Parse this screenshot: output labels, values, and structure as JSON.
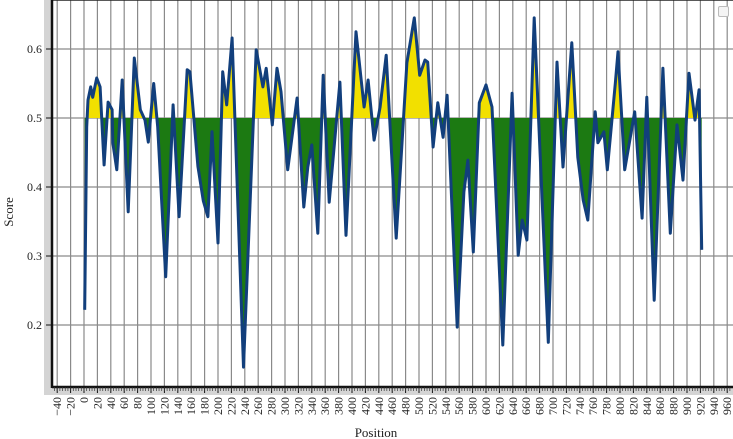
{
  "chart_data": {
    "type": "area",
    "title": "",
    "xlabel": "Position",
    "ylabel": "Score",
    "xlim": [
      -45,
      965
    ],
    "ylim": [
      0.111,
      0.67
    ],
    "threshold": 0.5,
    "grid": true,
    "x_ticks": [
      -40,
      -20,
      0,
      20,
      40,
      60,
      80,
      100,
      120,
      140,
      160,
      180,
      200,
      220,
      240,
      260,
      280,
      300,
      320,
      340,
      360,
      380,
      400,
      420,
      440,
      460,
      480,
      500,
      520,
      540,
      560,
      580,
      600,
      620,
      640,
      660,
      680,
      700,
      720,
      740,
      760,
      780,
      800,
      820,
      840,
      860,
      880,
      900,
      920,
      940,
      960
    ],
    "y_ticks": [
      0.2,
      0.3,
      0.4,
      0.5,
      0.6
    ],
    "colors": {
      "line": "#123f7c",
      "above": "#f2e000",
      "below": "#1c7a12",
      "grid": "#8a8a8a"
    },
    "series": [
      {
        "x": [
          1,
          4,
          6,
          10,
          13,
          19,
          24,
          30,
          36,
          42,
          43,
          49,
          57,
          66,
          75,
          84,
          91,
          96,
          104,
          110,
          122,
          133,
          142,
          154,
          158,
          170,
          178,
          185,
          191,
          200,
          207,
          213,
          221,
          238,
          257,
          267,
          272,
          281,
          288,
          294,
          304,
          318,
          328,
          334,
          340,
          349,
          357,
          366,
          382,
          391,
          406,
          418,
          424,
          433,
          442,
          451,
          466,
          482,
          493,
          501,
          509,
          513,
          521,
          528,
          536,
          542,
          557,
          567,
          573,
          581,
          590,
          600,
          609,
          625,
          639,
          648,
          654,
          661,
          672,
          693,
          706,
          715,
          728,
          737,
          745,
          752,
          763,
          767,
          776,
          781,
          793,
          797,
          807,
          822,
          833,
          840,
          851,
          864,
          875,
          885,
          894,
          903,
          912,
          918,
          922
        ],
        "y": [
          0.222,
          0.487,
          0.526,
          0.545,
          0.53,
          0.558,
          0.545,
          0.432,
          0.523,
          0.512,
          0.464,
          0.425,
          0.555,
          0.364,
          0.587,
          0.512,
          0.497,
          0.465,
          0.55,
          0.487,
          0.27,
          0.519,
          0.357,
          0.57,
          0.567,
          0.43,
          0.38,
          0.357,
          0.48,
          0.319,
          0.567,
          0.519,
          0.616,
          0.139,
          0.599,
          0.545,
          0.572,
          0.49,
          0.572,
          0.538,
          0.425,
          0.529,
          0.371,
          0.429,
          0.461,
          0.333,
          0.562,
          0.378,
          0.552,
          0.33,
          0.625,
          0.516,
          0.555,
          0.468,
          0.516,
          0.591,
          0.326,
          0.58,
          0.645,
          0.562,
          0.584,
          0.581,
          0.458,
          0.522,
          0.472,
          0.533,
          0.197,
          0.393,
          0.439,
          0.306,
          0.522,
          0.548,
          0.516,
          0.171,
          0.536,
          0.301,
          0.352,
          0.323,
          0.645,
          0.175,
          0.581,
          0.429,
          0.609,
          0.443,
          0.381,
          0.352,
          0.509,
          0.464,
          0.48,
          0.425,
          0.55,
          0.596,
          0.425,
          0.509,
          0.355,
          0.53,
          0.236,
          0.572,
          0.333,
          0.49,
          0.41,
          0.565,
          0.497,
          0.541,
          0.309
        ]
      }
    ]
  }
}
